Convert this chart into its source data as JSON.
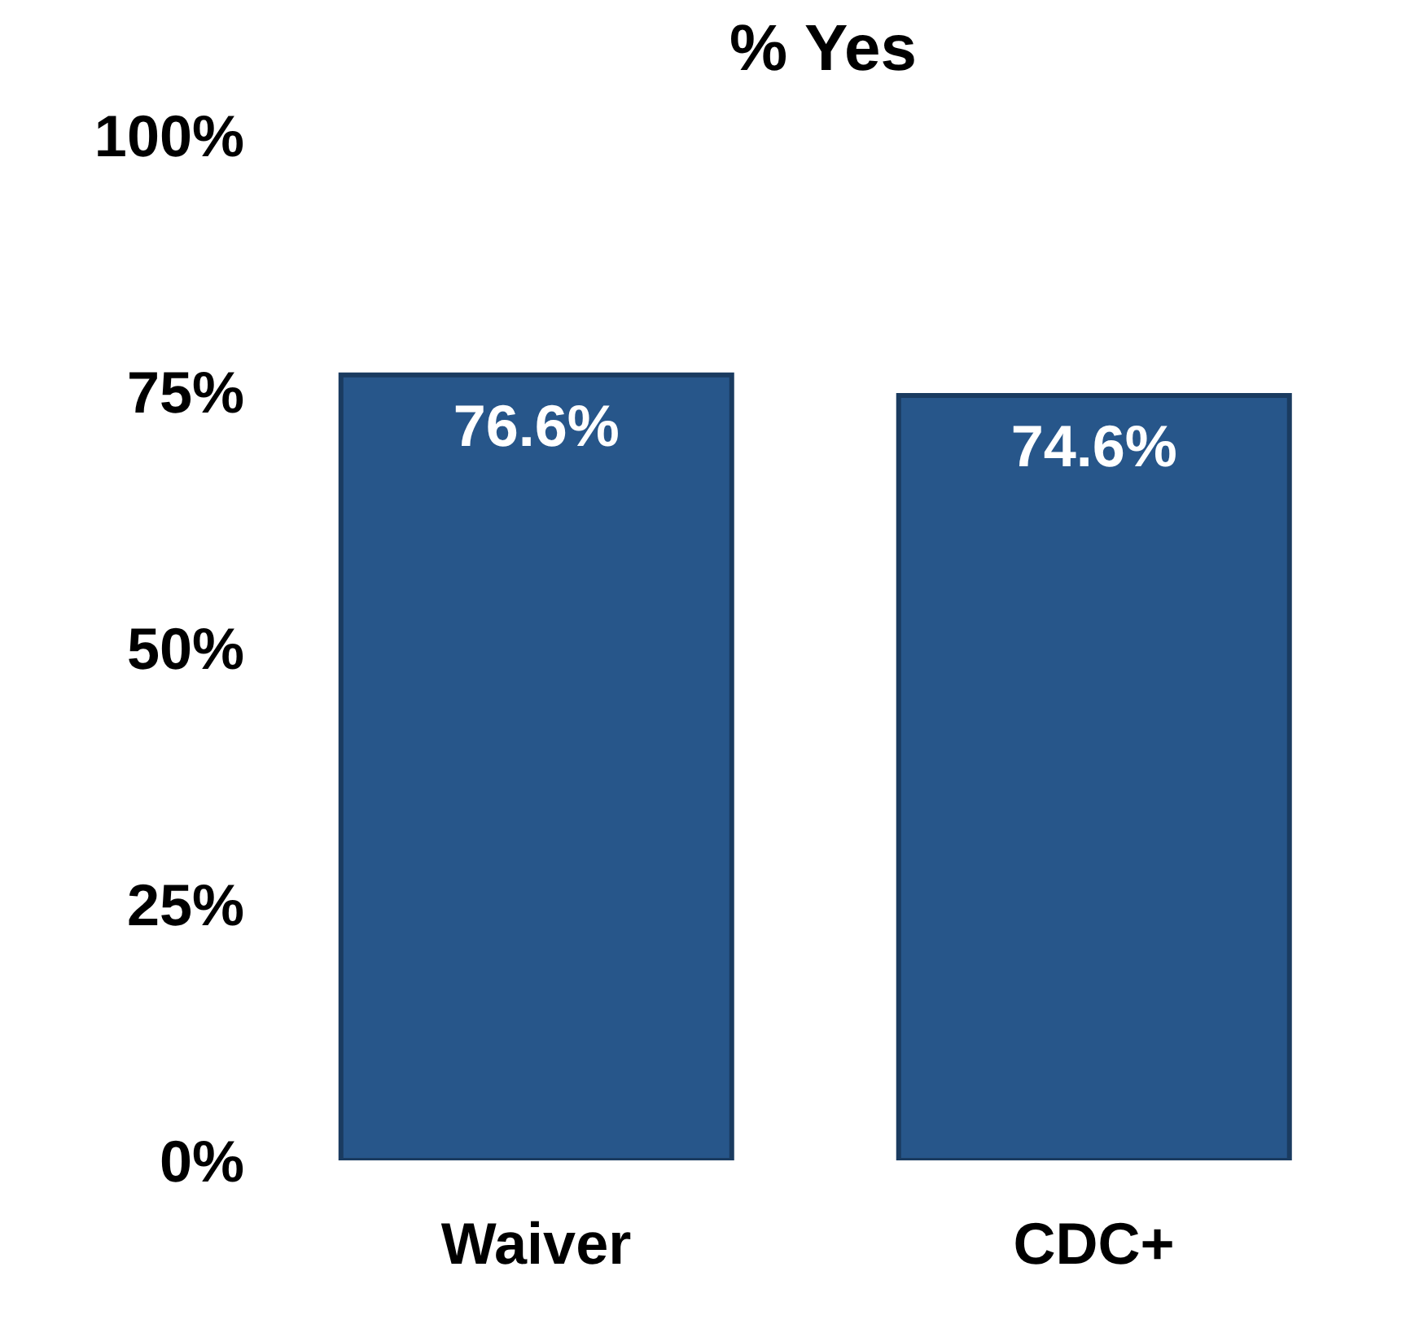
{
  "chart_data": {
    "type": "bar",
    "title": "% Yes",
    "categories": [
      "Waiver",
      "CDC+"
    ],
    "values": [
      76.6,
      74.6
    ],
    "value_labels": [
      "76.6%",
      "74.6%"
    ],
    "color": "#27568a",
    "ylim": [
      0,
      100
    ],
    "yticks": [
      {
        "value": 0,
        "label": "0%"
      },
      {
        "value": 25,
        "label": "25%"
      },
      {
        "value": 50,
        "label": "50%"
      },
      {
        "value": 75,
        "label": "75%"
      },
      {
        "value": 100,
        "label": "100%"
      }
    ],
    "grid": false,
    "legend": false
  }
}
